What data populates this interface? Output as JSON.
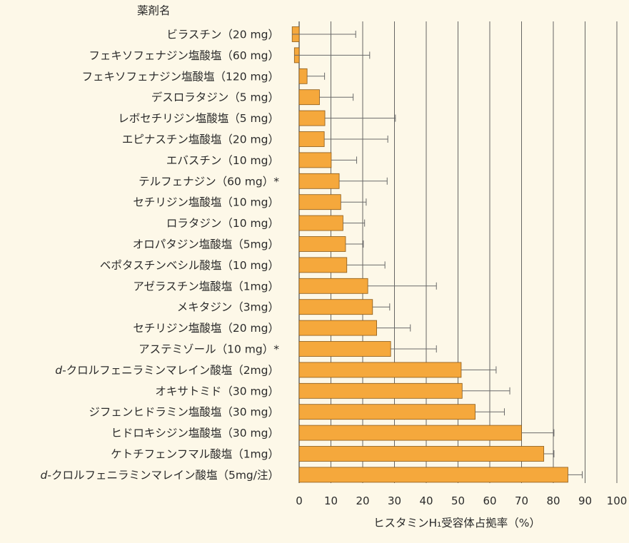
{
  "colors": {
    "background": "#fdf8e8",
    "bar_fill": "#f5a83c",
    "bar_stroke": "#8a5a1a",
    "grid": "#555555",
    "error_bar": "#6a6a6a"
  },
  "chart_data": {
    "type": "bar",
    "orientation": "horizontal",
    "category_header": "薬剤名",
    "xlabel": "ヒスタミンH₁受容体占拠率（%）",
    "xlim": [
      0,
      100
    ],
    "xticks": [
      0,
      10,
      20,
      30,
      40,
      50,
      60,
      70,
      80,
      90,
      100
    ],
    "grid": true,
    "categories": [
      "ビラスチン（20 mg）",
      "フェキソフェナジン塩酸塩（60 mg）",
      "フェキソフェナジン塩酸塩（120 mg）",
      "デスロラタジン（5 mg）",
      "レボセチリジン塩酸塩（5 mg）",
      "エピナスチン塩酸塩（20 mg）",
      "エバスチン（10 mg）",
      "テルフェナジン（60 mg）*",
      "セチリジン塩酸塩（10 mg）",
      "ロラタジン（10 mg）",
      "オロパタジン塩酸塩（5mg）",
      "ベポタスチンベシル酸塩（10 mg）",
      "アゼラスチン塩酸塩（1mg）",
      "メキタジン（3mg）",
      "セチリジン塩酸塩（20 mg）",
      "アステミゾール（10 mg）*",
      "d-クロルフェニラミンマレイン酸塩（2mg）",
      "オキサトミド（30 mg）",
      "ジフェンヒドラミン塩酸塩（30 mg）",
      "ヒドロキシジン塩酸塩（30 mg）",
      "ケトチフェンフマル酸塩（1mg）",
      "d-クロルフェニラミンマレイン酸塩（5mg/注）"
    ],
    "values": [
      -2.2,
      -1.5,
      2.5,
      6.4,
      8.1,
      7.9,
      10.1,
      12.6,
      13.1,
      13.8,
      14.6,
      15.0,
      21.6,
      23.1,
      24.4,
      28.8,
      51.0,
      51.3,
      55.4,
      70.0,
      77.0,
      84.6
    ],
    "error_upper": [
      20.0,
      23.7,
      5.5,
      10.6,
      22.2,
      20.0,
      8.0,
      15.1,
      8.0,
      6.8,
      5.6,
      12.0,
      21.6,
      5.4,
      10.6,
      14.4,
      11.0,
      15.0,
      9.2,
      10.2,
      3.2,
      4.5
    ]
  }
}
